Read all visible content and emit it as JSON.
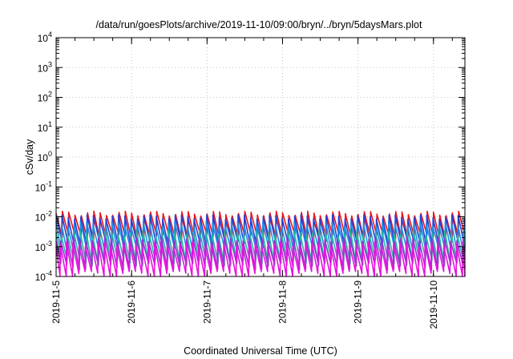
{
  "chart_data": {
    "type": "line",
    "title": "/data/run/goesPlots/archive/2019-11-10/09:00/bryn/../bryn/5daysMars.plot",
    "xlabel": "Coordinated Universal Time (UTC)",
    "ylabel": "cSv/day",
    "y_scale": "log",
    "ylim": [
      0.0001,
      10000
    ],
    "y_ticks": [
      {
        "base": "10",
        "exp": "4"
      },
      {
        "base": "10",
        "exp": "3"
      },
      {
        "base": "10",
        "exp": "2"
      },
      {
        "base": "10",
        "exp": "1"
      },
      {
        "base": "10",
        "exp": "0"
      },
      {
        "base": "10",
        "exp": "-1"
      },
      {
        "base": "10",
        "exp": "-2"
      },
      {
        "base": "10",
        "exp": "-3"
      },
      {
        "base": "10",
        "exp": "-4"
      }
    ],
    "x_ticks": [
      "2019-11-5",
      "2019-11-6",
      "2019-11-7",
      "2019-11-8",
      "2019-11-9",
      "2019-11-10"
    ],
    "xlim": [
      "2019-11-05T00:00",
      "2019-11-10T10:00"
    ],
    "grid": true,
    "pattern_period_hours": 2,
    "series": [
      {
        "color": "#e8161b",
        "high": 0.013,
        "low": 0.002
      },
      {
        "color": "#2a3fd6",
        "high": 0.01,
        "low": 0.0012
      },
      {
        "color": "#1d8fe8",
        "high": 0.006,
        "low": 0.0007
      },
      {
        "color": "#24b8a0",
        "high": 0.003,
        "low": 0.0003
      },
      {
        "color": "#9a2fd0",
        "high": 0.0018,
        "low": 0.00022
      },
      {
        "color": "#ea10e0",
        "high": 0.0012,
        "low": 0.00012
      }
    ]
  }
}
